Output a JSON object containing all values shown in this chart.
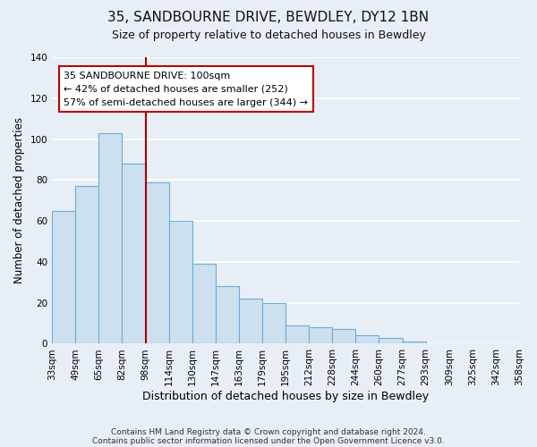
{
  "title": "35, SANDBOURNE DRIVE, BEWDLEY, DY12 1BN",
  "subtitle": "Size of property relative to detached houses in Bewdley",
  "xlabel": "Distribution of detached houses by size in Bewdley",
  "ylabel": "Number of detached properties",
  "bin_labels": [
    "33sqm",
    "49sqm",
    "65sqm",
    "82sqm",
    "98sqm",
    "114sqm",
    "130sqm",
    "147sqm",
    "163sqm",
    "179sqm",
    "195sqm",
    "212sqm",
    "228sqm",
    "244sqm",
    "260sqm",
    "277sqm",
    "293sqm",
    "309sqm",
    "325sqm",
    "342sqm",
    "358sqm"
  ],
  "bar_values": [
    65,
    77,
    103,
    88,
    79,
    60,
    39,
    28,
    22,
    20,
    9,
    8,
    7,
    4,
    3,
    1,
    0,
    0,
    0,
    0
  ],
  "bar_color": "#cce0f0",
  "bar_edge_color": "#6aaed6",
  "vline_x": 4,
  "property_line_label": "35 SANDBOURNE DRIVE: 100sqm",
  "annotation_line1": "← 42% of detached houses are smaller (252)",
  "annotation_line2": "57% of semi-detached houses are larger (344) →",
  "annotation_box_facecolor": "#ffffff",
  "annotation_box_edgecolor": "#bb0000",
  "vline_color": "#aa0000",
  "ylim": [
    0,
    140
  ],
  "yticks": [
    0,
    20,
    40,
    60,
    80,
    100,
    120,
    140
  ],
  "footer1": "Contains HM Land Registry data © Crown copyright and database right 2024.",
  "footer2": "Contains public sector information licensed under the Open Government Licence v3.0.",
  "bg_color": "#e8eef5",
  "grid_color": "#ffffff",
  "title_fontsize": 11,
  "subtitle_fontsize": 9,
  "ylabel_fontsize": 8.5,
  "xlabel_fontsize": 9,
  "tick_fontsize": 7.5,
  "annot_fontsize": 8,
  "footer_fontsize": 6.5
}
